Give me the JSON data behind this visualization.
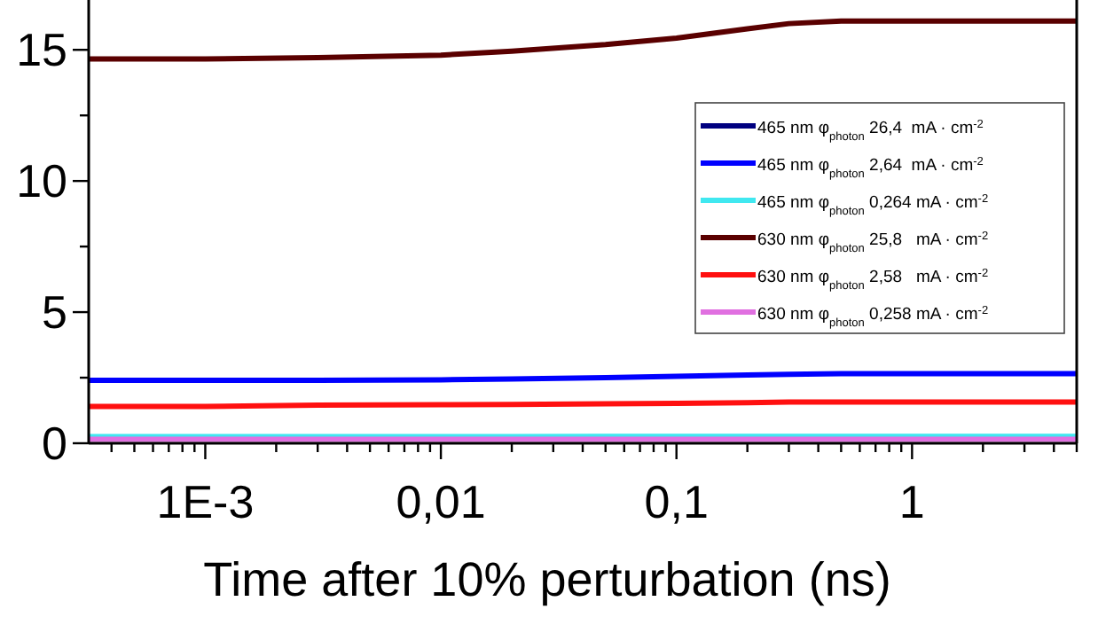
{
  "chart_data": {
    "type": "line",
    "xlabel": "Time after 10% perturbation (ns)",
    "log": "x",
    "xlim": [
      0.00032,
      5
    ],
    "ylim": [
      0,
      16.9
    ],
    "xticks": [
      {
        "value": 0.0004,
        "label": null
      },
      {
        "value": 0.0005,
        "label": null
      },
      {
        "value": 0.0006,
        "label": null
      },
      {
        "value": 0.0007,
        "label": null
      },
      {
        "value": 0.0008,
        "label": null
      },
      {
        "value": 0.0009,
        "label": null
      },
      {
        "value": 0.001,
        "label": "1E-3"
      },
      {
        "value": 0.002,
        "label": null
      },
      {
        "value": 0.003,
        "label": null
      },
      {
        "value": 0.004,
        "label": null
      },
      {
        "value": 0.005,
        "label": null
      },
      {
        "value": 0.006,
        "label": null
      },
      {
        "value": 0.007,
        "label": null
      },
      {
        "value": 0.008,
        "label": null
      },
      {
        "value": 0.009,
        "label": null
      },
      {
        "value": 0.01,
        "label": "0,01"
      },
      {
        "value": 0.02,
        "label": null
      },
      {
        "value": 0.03,
        "label": null
      },
      {
        "value": 0.04,
        "label": null
      },
      {
        "value": 0.05,
        "label": null
      },
      {
        "value": 0.06,
        "label": null
      },
      {
        "value": 0.07,
        "label": null
      },
      {
        "value": 0.08,
        "label": null
      },
      {
        "value": 0.09,
        "label": null
      },
      {
        "value": 0.1,
        "label": "0,1"
      },
      {
        "value": 0.2,
        "label": null
      },
      {
        "value": 0.3,
        "label": null
      },
      {
        "value": 0.4,
        "label": null
      },
      {
        "value": 0.5,
        "label": null
      },
      {
        "value": 0.6,
        "label": null
      },
      {
        "value": 0.7,
        "label": null
      },
      {
        "value": 0.8,
        "label": null
      },
      {
        "value": 0.9,
        "label": null
      },
      {
        "value": 1,
        "label": "1"
      },
      {
        "value": 2,
        "label": null
      },
      {
        "value": 3,
        "label": null
      },
      {
        "value": 4,
        "label": null
      },
      {
        "value": 5,
        "label": null
      }
    ],
    "yticks": [
      0,
      {
        "value": 2.5,
        "label": null
      },
      5,
      {
        "value": 7.5,
        "label": null
      },
      10,
      {
        "value": 12.5,
        "label": null
      },
      15
    ],
    "x": [
      0.00032,
      0.001,
      0.003,
      0.01,
      0.02,
      0.05,
      0.1,
      0.2,
      0.3,
      0.5,
      1,
      5
    ],
    "legend": "right",
    "grid": false,
    "marker": "none",
    "line_style": "solid",
    "series": [
      {
        "name": "465 nm φ$_{photon}$ 26,4  mA · cm$^{-2}$",
        "color": "#000080",
        "values": [
          null,
          null,
          null,
          null,
          null,
          null,
          null,
          null,
          null,
          null,
          null,
          null
        ]
      },
      {
        "name": "465 nm φ$_{photon}$ 2,64  mA · cm$^{-2}$",
        "color": "#0000ff",
        "values": [
          2.4,
          2.4,
          2.4,
          2.42,
          2.45,
          2.5,
          2.55,
          2.6,
          2.63,
          2.65,
          2.65,
          2.65
        ]
      },
      {
        "name": "465 nm φ$_{photon}$ 0,264 mA · cm$^{-2}$",
        "color": "#40e8f0",
        "values": [
          0.25,
          0.25,
          0.25,
          0.25,
          0.25,
          0.26,
          0.26,
          0.26,
          0.26,
          0.26,
          0.26,
          0.26
        ]
      },
      {
        "name": "630 nm φ$_{photon}$ 25,8   mA · cm$^{-2}$",
        "color": "#5a0000",
        "values": [
          14.65,
          14.65,
          14.7,
          14.8,
          14.95,
          15.2,
          15.45,
          15.8,
          16.0,
          16.1,
          16.1,
          16.1
        ]
      },
      {
        "name": "630 nm φ$_{photon}$ 2,58   mA · cm$^{-2}$",
        "color": "#ff1010",
        "values": [
          1.4,
          1.4,
          1.45,
          1.47,
          1.48,
          1.5,
          1.52,
          1.55,
          1.57,
          1.57,
          1.57,
          1.57
        ]
      },
      {
        "name": "630 nm φ$_{photon}$ 0,258 mA · cm$^{-2}$",
        "color": "#e070e0",
        "values": [
          0.15,
          0.15,
          0.15,
          0.15,
          0.15,
          0.15,
          0.15,
          0.15,
          0.15,
          0.15,
          0.15,
          0.15
        ]
      }
    ]
  }
}
